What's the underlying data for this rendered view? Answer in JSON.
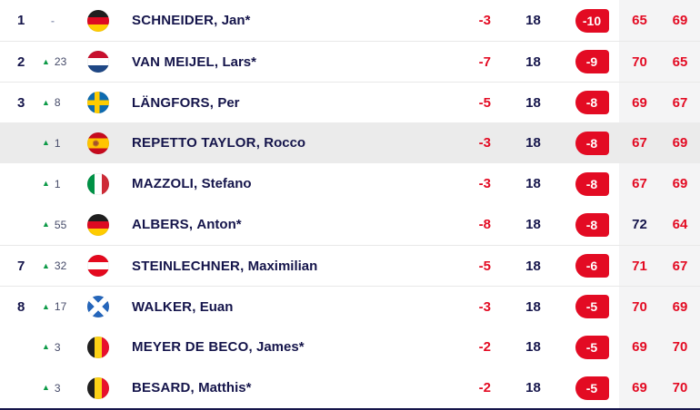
{
  "colors": {
    "score_red": "#e30b23",
    "text_navy": "#15154b",
    "change_green": "#0d9a47",
    "row_highlight": "#ebebeb",
    "rounds_panel_gray": "#f4f4f5",
    "separator_gray": "#e8e8e8",
    "bottom_bar_navy": "#15154b"
  },
  "icons": {
    "up_triangle": "▲",
    "no_change_dash": "-"
  },
  "leaderboard": {
    "rows": [
      {
        "pos": "1",
        "dir": "none",
        "change": "-",
        "flag": "de",
        "flag_name": "germany",
        "surname": "SCHNEIDER,",
        "firstname": "Jan*",
        "today": "-3",
        "thru": "18",
        "total": "-10",
        "r1": "65",
        "r2": "69",
        "r1c": "red",
        "r2c": "red",
        "highlight": false,
        "sep": false
      },
      {
        "pos": "2",
        "dir": "up",
        "change": "23",
        "flag": "nl",
        "flag_name": "netherlands",
        "surname": "VAN MEIJEL,",
        "firstname": "Lars*",
        "today": "-7",
        "thru": "18",
        "total": "-9",
        "r1": "70",
        "r2": "65",
        "r1c": "red",
        "r2c": "red",
        "highlight": false,
        "sep": true
      },
      {
        "pos": "3",
        "dir": "up",
        "change": "8",
        "flag": "se",
        "flag_name": "sweden",
        "surname": "LÄNGFORS,",
        "firstname": "Per",
        "today": "-5",
        "thru": "18",
        "total": "-8",
        "r1": "69",
        "r2": "67",
        "r1c": "red",
        "r2c": "red",
        "highlight": false,
        "sep": true
      },
      {
        "pos": "",
        "dir": "up",
        "change": "1",
        "flag": "es",
        "flag_name": "spain",
        "surname": "REPETTO TAYLOR,",
        "firstname": "Rocco",
        "today": "-3",
        "thru": "18",
        "total": "-8",
        "r1": "67",
        "r2": "69",
        "r1c": "red",
        "r2c": "red",
        "highlight": true,
        "sep": false
      },
      {
        "pos": "",
        "dir": "up",
        "change": "1",
        "flag": "it",
        "flag_name": "italy",
        "surname": "MAZZOLI,",
        "firstname": "Stefano",
        "today": "-3",
        "thru": "18",
        "total": "-8",
        "r1": "67",
        "r2": "69",
        "r1c": "red",
        "r2c": "red",
        "highlight": false,
        "sep": false
      },
      {
        "pos": "",
        "dir": "up",
        "change": "55",
        "flag": "de",
        "flag_name": "germany",
        "surname": "ALBERS,",
        "firstname": "Anton*",
        "today": "-8",
        "thru": "18",
        "total": "-8",
        "r1": "72",
        "r2": "64",
        "r1c": "navy",
        "r2c": "red",
        "highlight": false,
        "sep": false
      },
      {
        "pos": "7",
        "dir": "up",
        "change": "32",
        "flag": "at",
        "flag_name": "austria",
        "surname": "STEINLECHNER,",
        "firstname": "Maximilian",
        "today": "-5",
        "thru": "18",
        "total": "-6",
        "r1": "71",
        "r2": "67",
        "r1c": "red",
        "r2c": "red",
        "highlight": false,
        "sep": true
      },
      {
        "pos": "8",
        "dir": "up",
        "change": "17",
        "flag": "sct",
        "flag_name": "scotland",
        "surname": "WALKER,",
        "firstname": "Euan",
        "today": "-3",
        "thru": "18",
        "total": "-5",
        "r1": "70",
        "r2": "69",
        "r1c": "red",
        "r2c": "red",
        "highlight": false,
        "sep": true
      },
      {
        "pos": "",
        "dir": "up",
        "change": "3",
        "flag": "be",
        "flag_name": "belgium",
        "surname": "MEYER DE BECO,",
        "firstname": "James*",
        "today": "-2",
        "thru": "18",
        "total": "-5",
        "r1": "69",
        "r2": "70",
        "r1c": "red",
        "r2c": "red",
        "highlight": false,
        "sep": false
      },
      {
        "pos": "",
        "dir": "up",
        "change": "3",
        "flag": "be",
        "flag_name": "belgium",
        "surname": "BESARD,",
        "firstname": "Matthis*",
        "today": "-2",
        "thru": "18",
        "total": "-5",
        "r1": "69",
        "r2": "70",
        "r1c": "red",
        "r2c": "red",
        "highlight": false,
        "sep": false
      }
    ]
  }
}
